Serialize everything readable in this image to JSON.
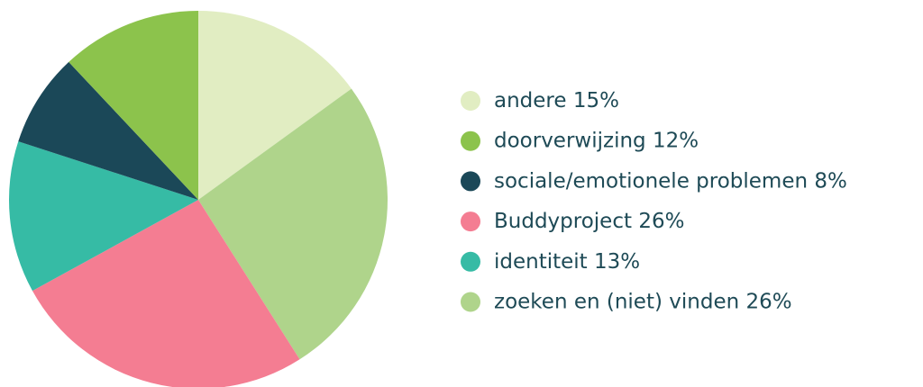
{
  "chart_data": {
    "type": "pie",
    "categories": [
      "andere",
      "doorverwijzing",
      "sociale/emotionele problemen",
      "Buddyproject",
      "identiteit",
      "zoeken en (niet) vinden"
    ],
    "values": [
      15,
      12,
      8,
      26,
      13,
      26
    ],
    "value_labels": [
      "15%",
      "12%",
      "8%",
      "26%",
      "13%",
      "26%"
    ],
    "colors": [
      "#e1edc2",
      "#8cc34c",
      "#1b4858",
      "#f47d92",
      "#36bba5",
      "#afd48b"
    ],
    "slice_order": [
      0,
      5,
      3,
      4,
      2,
      1
    ],
    "legend": "right"
  }
}
